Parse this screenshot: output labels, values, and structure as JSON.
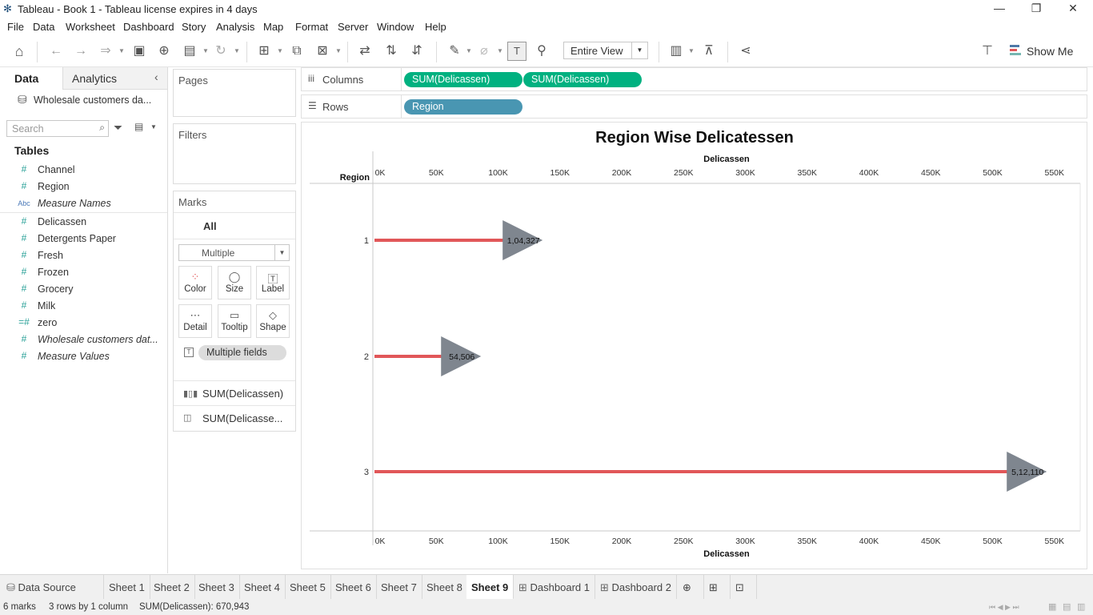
{
  "window": {
    "title": "Tableau - Book 1 - Tableau license expires in 4 days"
  },
  "menu": [
    "File",
    "Data",
    "Worksheet",
    "Dashboard",
    "Story",
    "Analysis",
    "Map",
    "Format",
    "Server",
    "Window",
    "Help"
  ],
  "toolbar": {
    "fit_value": "Entire View",
    "show_me_label": "Show Me"
  },
  "left_pane": {
    "tabs": [
      "Data",
      "Analytics"
    ],
    "data_source": "Wholesale customers da...",
    "search_placeholder": "Search",
    "tables_header": "Tables",
    "fields": [
      {
        "name": "Channel",
        "type": "#",
        "italic": false
      },
      {
        "name": "Region",
        "type": "#",
        "italic": false
      },
      {
        "name": "Measure Names",
        "type": "Abc",
        "italic": true
      },
      {
        "name": "Delicassen",
        "type": "#",
        "italic": false
      },
      {
        "name": "Detergents Paper",
        "type": "#",
        "italic": false
      },
      {
        "name": "Fresh",
        "type": "#",
        "italic": false
      },
      {
        "name": "Frozen",
        "type": "#",
        "italic": false
      },
      {
        "name": "Grocery",
        "type": "#",
        "italic": false
      },
      {
        "name": "Milk",
        "type": "#",
        "italic": false
      },
      {
        "name": "zero",
        "type": "=#",
        "italic": false
      },
      {
        "name": "Wholesale customers dat...",
        "type": "#",
        "italic": true
      },
      {
        "name": "Measure Values",
        "type": "#",
        "italic": true
      }
    ]
  },
  "cards": {
    "pages": "Pages",
    "filters": "Filters",
    "marks": "Marks",
    "marks_all": "All",
    "mark_type": "Multiple",
    "buttons": [
      "Color",
      "Size",
      "Label",
      "Detail",
      "Tooltip",
      "Shape"
    ],
    "label_pill": "Multiple fields",
    "mark_layers": [
      "SUM(Delicassen)",
      "SUM(Delicasse..."
    ]
  },
  "shelves": {
    "columns_label": "Columns",
    "rows_label": "Rows",
    "columns_pills": [
      "SUM(Delicassen)",
      "SUM(Delicassen)"
    ],
    "rows_pills": [
      "Region"
    ]
  },
  "chart_data": {
    "type": "bar",
    "title": "Region Wise Delicatessen",
    "xlabel": "Delicassen",
    "ylabel": "Region",
    "categories": [
      "1",
      "2",
      "3"
    ],
    "values": [
      104327,
      54506,
      512110
    ],
    "data_labels": [
      "1,04,327",
      "54,506",
      "5,12,110"
    ],
    "xlim": [
      0,
      560000
    ],
    "x_ticks": [
      0,
      50000,
      100000,
      150000,
      200000,
      250000,
      300000,
      350000,
      400000,
      450000,
      500000,
      550000
    ],
    "x_tick_labels": [
      "0K",
      "50K",
      "100K",
      "150K",
      "200K",
      "250K",
      "300K",
      "350K",
      "400K",
      "450K",
      "500K",
      "550K"
    ],
    "bar_color": "#e15759",
    "marker_shape": "triangle",
    "marker_color": "#7f868f",
    "grid": false
  },
  "sheet_tabs": {
    "data_source": "Data Source",
    "sheets": [
      "Sheet 1",
      "Sheet 2",
      "Sheet 3",
      "Sheet 4",
      "Sheet 5",
      "Sheet 6",
      "Sheet 7",
      "Sheet 8",
      "Sheet 9",
      "Dashboard 1",
      "Dashboard 2"
    ],
    "active": "Sheet 9"
  },
  "status": {
    "marks": "6 marks",
    "dims": "3 rows by 1 column",
    "sum": "SUM(Delicassen): 670,943"
  }
}
